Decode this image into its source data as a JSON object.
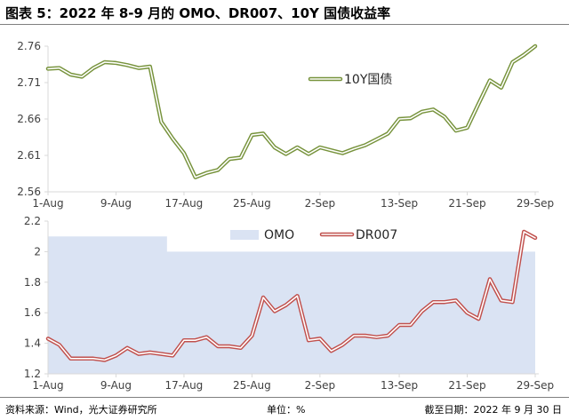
{
  "title": "图表 5：2022 年 8-9 月的 OMO、DR007、10Y 国债收益率",
  "footer": {
    "source": "资料来源：Wind，光大证券研究所",
    "unit": "单位：%",
    "date": "截至日期：2022 年 9 月 30 日"
  },
  "colors": {
    "green": "#77933c",
    "red": "#c0504d",
    "omo_fill": "#dae3f3",
    "axis": "#d9d9d9"
  },
  "x_ticks": [
    "1-Aug",
    "9-Aug",
    "17-Aug",
    "25-Aug",
    "2-Sep",
    "13-Sep",
    "21-Sep",
    "29-Sep"
  ],
  "chart_data": [
    {
      "type": "line",
      "ylim": [
        2.56,
        2.76
      ],
      "y_ticks": [
        "2.76",
        "2.71",
        "2.66",
        "2.61",
        "2.56"
      ],
      "legend": "top-right",
      "series": [
        {
          "name": "10Y国债",
          "values": [
            2.729,
            2.73,
            2.721,
            2.718,
            2.73,
            2.738,
            2.737,
            2.734,
            2.73,
            2.732,
            2.656,
            2.633,
            2.613,
            2.58,
            2.586,
            2.59,
            2.605,
            2.607,
            2.638,
            2.64,
            2.621,
            2.612,
            2.621,
            2.612,
            2.621,
            2.617,
            2.613,
            2.619,
            2.624,
            2.632,
            2.64,
            2.66,
            2.661,
            2.67,
            2.673,
            2.663,
            2.644,
            2.648,
            2.681,
            2.713,
            2.703,
            2.738,
            2.748,
            2.76
          ]
        }
      ]
    },
    {
      "type": "area",
      "ylim": [
        1.2,
        2.2
      ],
      "y_ticks": [
        "2.2",
        "2",
        "1.8",
        "1.6",
        "1.4",
        "1.2"
      ],
      "legend": "top",
      "series": [
        {
          "name": "OMO",
          "values": [
            2.1,
            2.1,
            2.1,
            2.1,
            2.1,
            2.1,
            2.1,
            2.1,
            2.1,
            2.1,
            2.1,
            2.0,
            2.0,
            2.0,
            2.0,
            2.0,
            2.0,
            2.0,
            2.0,
            2.0,
            2.0,
            2.0,
            2.0,
            2.0,
            2.0,
            2.0,
            2.0,
            2.0,
            2.0,
            2.0,
            2.0,
            2.0,
            2.0,
            2.0,
            2.0,
            2.0,
            2.0,
            2.0,
            2.0,
            2.0,
            2.0,
            2.0,
            2.0,
            2.0
          ]
        },
        {
          "name": "DR007",
          "values": [
            1.43,
            1.39,
            1.3,
            1.3,
            1.3,
            1.29,
            1.32,
            1.37,
            1.33,
            1.34,
            1.33,
            1.32,
            1.42,
            1.42,
            1.44,
            1.38,
            1.38,
            1.37,
            1.45,
            1.7,
            1.61,
            1.65,
            1.71,
            1.42,
            1.43,
            1.35,
            1.39,
            1.45,
            1.45,
            1.44,
            1.45,
            1.52,
            1.52,
            1.61,
            1.67,
            1.67,
            1.68,
            1.6,
            1.56,
            1.82,
            1.68,
            1.67,
            2.13,
            2.09
          ]
        }
      ]
    }
  ]
}
